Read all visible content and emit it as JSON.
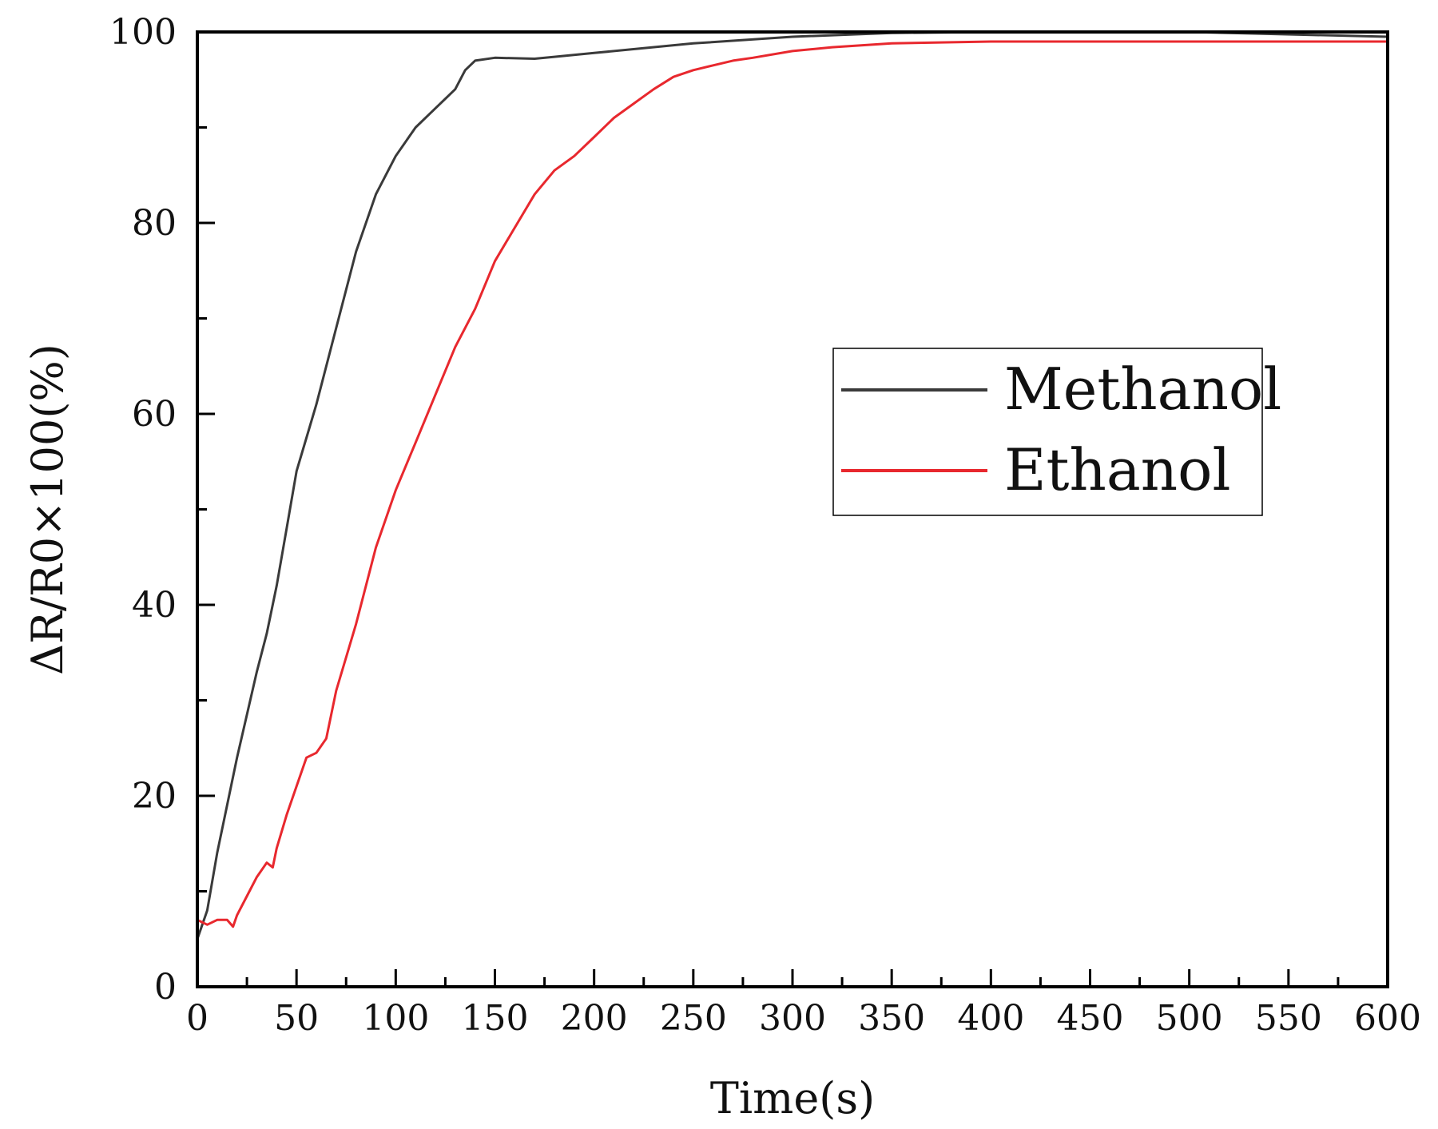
{
  "chart_data": {
    "type": "line",
    "title": "",
    "xlabel": "Time(s)",
    "ylabel": "ΔR/R0×100(%)",
    "xlim": [
      0,
      600
    ],
    "ylim": [
      0,
      100
    ],
    "xticks": [
      0,
      50,
      100,
      150,
      200,
      250,
      300,
      350,
      400,
      450,
      500,
      550,
      600
    ],
    "yticks": [
      0,
      20,
      40,
      60,
      80,
      100
    ],
    "legend_position": "right-middle",
    "grid": false,
    "series": [
      {
        "name": "Methanol",
        "color": "#3a3a3a",
        "x": [
          0,
          5,
          10,
          20,
          30,
          35,
          40,
          45,
          50,
          60,
          70,
          80,
          90,
          100,
          110,
          120,
          130,
          135,
          140,
          150,
          170,
          180,
          200,
          250,
          300,
          350,
          400,
          500,
          600
        ],
        "y": [
          5,
          8,
          14,
          24,
          33,
          37,
          42,
          48,
          54,
          61,
          69,
          77,
          83,
          87,
          90,
          92,
          94,
          96,
          97,
          97.3,
          97.2,
          97.4,
          97.8,
          98.8,
          99.5,
          99.9,
          100,
          100,
          99.5
        ]
      },
      {
        "name": "Ethanol",
        "color": "#e8282e",
        "x": [
          0,
          5,
          10,
          15,
          18,
          20,
          25,
          30,
          35,
          38,
          40,
          45,
          50,
          55,
          60,
          65,
          70,
          80,
          90,
          100,
          110,
          120,
          130,
          140,
          150,
          160,
          170,
          180,
          190,
          200,
          210,
          220,
          230,
          240,
          250,
          260,
          270,
          280,
          300,
          320,
          350,
          400,
          450,
          500,
          550,
          600
        ],
        "y": [
          7,
          6.5,
          7,
          7,
          6.3,
          7.5,
          9.5,
          11.5,
          13,
          12.5,
          14.5,
          18,
          21,
          24,
          24.5,
          26,
          31,
          38,
          46,
          52,
          57,
          62,
          67,
          71,
          76,
          79.5,
          83,
          85.5,
          87,
          89,
          91,
          92.5,
          94,
          95.3,
          96,
          96.5,
          97,
          97.3,
          98,
          98.4,
          98.8,
          99,
          99,
          99,
          99,
          99
        ]
      }
    ]
  }
}
